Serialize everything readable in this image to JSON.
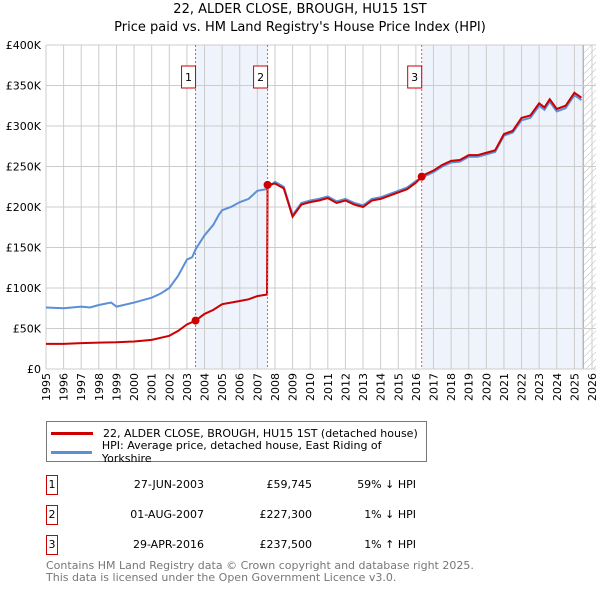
{
  "chart_data": {
    "type": "line",
    "title": "22, ALDER CLOSE, BROUGH, HU15 1ST",
    "subtitle": "Price paid vs. HM Land Registry's House Price Index (HPI)",
    "xlim": [
      1995,
      2026
    ],
    "ylim": [
      0,
      400000
    ],
    "y_ticks": [
      {
        "v": 0,
        "label": "£0"
      },
      {
        "v": 50000,
        "label": "£50K"
      },
      {
        "v": 100000,
        "label": "£100K"
      },
      {
        "v": 150000,
        "label": "£150K"
      },
      {
        "v": 200000,
        "label": "£200K"
      },
      {
        "v": 250000,
        "label": "£250K"
      },
      {
        "v": 300000,
        "label": "£300K"
      },
      {
        "v": 350000,
        "label": "£350K"
      },
      {
        "v": 400000,
        "label": "£400K"
      }
    ],
    "x_ticks": [
      "1995",
      "1996",
      "1997",
      "1998",
      "1999",
      "2000",
      "2001",
      "2002",
      "2003",
      "2004",
      "2005",
      "2006",
      "2007",
      "2008",
      "2009",
      "2010",
      "2011",
      "2012",
      "2013",
      "2014",
      "2015",
      "2016",
      "2017",
      "2018",
      "2019",
      "2020",
      "2021",
      "2022",
      "2023",
      "2024",
      "2025",
      "2026"
    ],
    "grid": true,
    "series": [
      {
        "name": "22, ALDER CLOSE, BROUGH, HU15 1ST (detached house)",
        "color": "#cc0000",
        "unit": "£K",
        "points": [
          [
            1995,
            31
          ],
          [
            1996,
            31
          ],
          [
            1997,
            32
          ],
          [
            1998,
            32.5
          ],
          [
            1999,
            33
          ],
          [
            2000,
            34
          ],
          [
            2001,
            36
          ],
          [
            2002,
            41
          ],
          [
            2002.5,
            47
          ],
          [
            2003,
            55
          ],
          [
            2003.49,
            59.745
          ],
          [
            2004,
            68
          ],
          [
            2004.5,
            73
          ],
          [
            2005,
            80
          ],
          [
            2005.5,
            82
          ],
          [
            2006,
            84
          ],
          [
            2006.5,
            86
          ],
          [
            2007,
            90
          ],
          [
            2007.55,
            92
          ],
          [
            2007.58,
            227.3
          ],
          [
            2008,
            229
          ],
          [
            2008.5,
            223
          ],
          [
            2009,
            188
          ],
          [
            2009.5,
            203
          ],
          [
            2010,
            206
          ],
          [
            2010.5,
            208
          ],
          [
            2011,
            211
          ],
          [
            2011.5,
            205
          ],
          [
            2012,
            208
          ],
          [
            2012.5,
            203
          ],
          [
            2013,
            200
          ],
          [
            2013.5,
            208
          ],
          [
            2014,
            210
          ],
          [
            2014.5,
            214
          ],
          [
            2015,
            218
          ],
          [
            2015.5,
            222
          ],
          [
            2016,
            230
          ],
          [
            2016.33,
            237.5
          ],
          [
            2016.5,
            240
          ],
          [
            2017,
            245
          ],
          [
            2017.5,
            252
          ],
          [
            2018,
            257
          ],
          [
            2018.5,
            258
          ],
          [
            2019,
            264
          ],
          [
            2019.5,
            264
          ],
          [
            2020,
            267
          ],
          [
            2020.5,
            270
          ],
          [
            2021,
            290
          ],
          [
            2021.5,
            294
          ],
          [
            2022,
            310
          ],
          [
            2022.5,
            313
          ],
          [
            2023,
            328
          ],
          [
            2023.3,
            323
          ],
          [
            2023.6,
            333
          ],
          [
            2024,
            321
          ],
          [
            2024.5,
            325
          ],
          [
            2025,
            341
          ],
          [
            2025.4,
            335
          ]
        ]
      },
      {
        "name": "HPI: Average price, detached house, East Riding of Yorkshire",
        "color": "#5b8fd6",
        "unit": "£K",
        "points": [
          [
            1995,
            76
          ],
          [
            1996,
            75
          ],
          [
            1997,
            77
          ],
          [
            1997.5,
            76
          ],
          [
            1998,
            79
          ],
          [
            1998.7,
            82
          ],
          [
            1999,
            77
          ],
          [
            2000,
            82
          ],
          [
            2001,
            88
          ],
          [
            2001.5,
            93
          ],
          [
            2002,
            100
          ],
          [
            2002.5,
            115
          ],
          [
            2003,
            135
          ],
          [
            2003.3,
            138
          ],
          [
            2003.5,
            148
          ],
          [
            2004,
            165
          ],
          [
            2004.5,
            178
          ],
          [
            2004.8,
            190
          ],
          [
            2005,
            196
          ],
          [
            2005.5,
            200
          ],
          [
            2006,
            206
          ],
          [
            2006.5,
            210
          ],
          [
            2007,
            220
          ],
          [
            2007.5,
            222
          ],
          [
            2008,
            231
          ],
          [
            2008.5,
            225
          ],
          [
            2009,
            190
          ],
          [
            2009.5,
            205
          ],
          [
            2010,
            208
          ],
          [
            2010.5,
            210
          ],
          [
            2011,
            213
          ],
          [
            2011.5,
            207
          ],
          [
            2012,
            210
          ],
          [
            2012.5,
            205
          ],
          [
            2013,
            202
          ],
          [
            2013.5,
            210
          ],
          [
            2014,
            212
          ],
          [
            2014.5,
            216
          ],
          [
            2015,
            220
          ],
          [
            2015.5,
            224
          ],
          [
            2016,
            232
          ],
          [
            2016.5,
            238
          ],
          [
            2017,
            243
          ],
          [
            2017.5,
            250
          ],
          [
            2018,
            255
          ],
          [
            2018.5,
            256
          ],
          [
            2019,
            262
          ],
          [
            2019.5,
            262
          ],
          [
            2020,
            265
          ],
          [
            2020.5,
            268
          ],
          [
            2021,
            288
          ],
          [
            2021.5,
            292
          ],
          [
            2022,
            307
          ],
          [
            2022.5,
            310
          ],
          [
            2023,
            325
          ],
          [
            2023.3,
            320
          ],
          [
            2023.6,
            330
          ],
          [
            2024,
            318
          ],
          [
            2024.5,
            322
          ],
          [
            2025,
            338
          ],
          [
            2025.4,
            332
          ]
        ]
      }
    ],
    "sales": [
      {
        "label": "1",
        "x": 2003.49,
        "y": 59.745
      },
      {
        "label": "2",
        "x": 2007.58,
        "y": 227.3
      },
      {
        "label": "3",
        "x": 2016.33,
        "y": 237.5
      }
    ],
    "shaded_ranges": [
      [
        2003.49,
        2007.58
      ],
      [
        2016.33,
        2025.5
      ]
    ],
    "forecast_hatch_from": 2025.5
  },
  "legend": {
    "items": [
      "22, ALDER CLOSE, BROUGH, HU15 1ST (detached house)",
      "HPI: Average price, detached house, East Riding of Yorkshire"
    ]
  },
  "transactions": [
    {
      "num": "1",
      "date": "27-JUN-2003",
      "price": "£59,745",
      "hpi": "59% ↓ HPI"
    },
    {
      "num": "2",
      "date": "01-AUG-2007",
      "price": "£227,300",
      "hpi": "1% ↓ HPI"
    },
    {
      "num": "3",
      "date": "29-APR-2016",
      "price": "£237,500",
      "hpi": "1% ↑ HPI"
    }
  ],
  "footer": {
    "line1": "Contains HM Land Registry data © Crown copyright and database right 2025.",
    "line2": "This data is licensed under the Open Government Licence v3.0."
  }
}
